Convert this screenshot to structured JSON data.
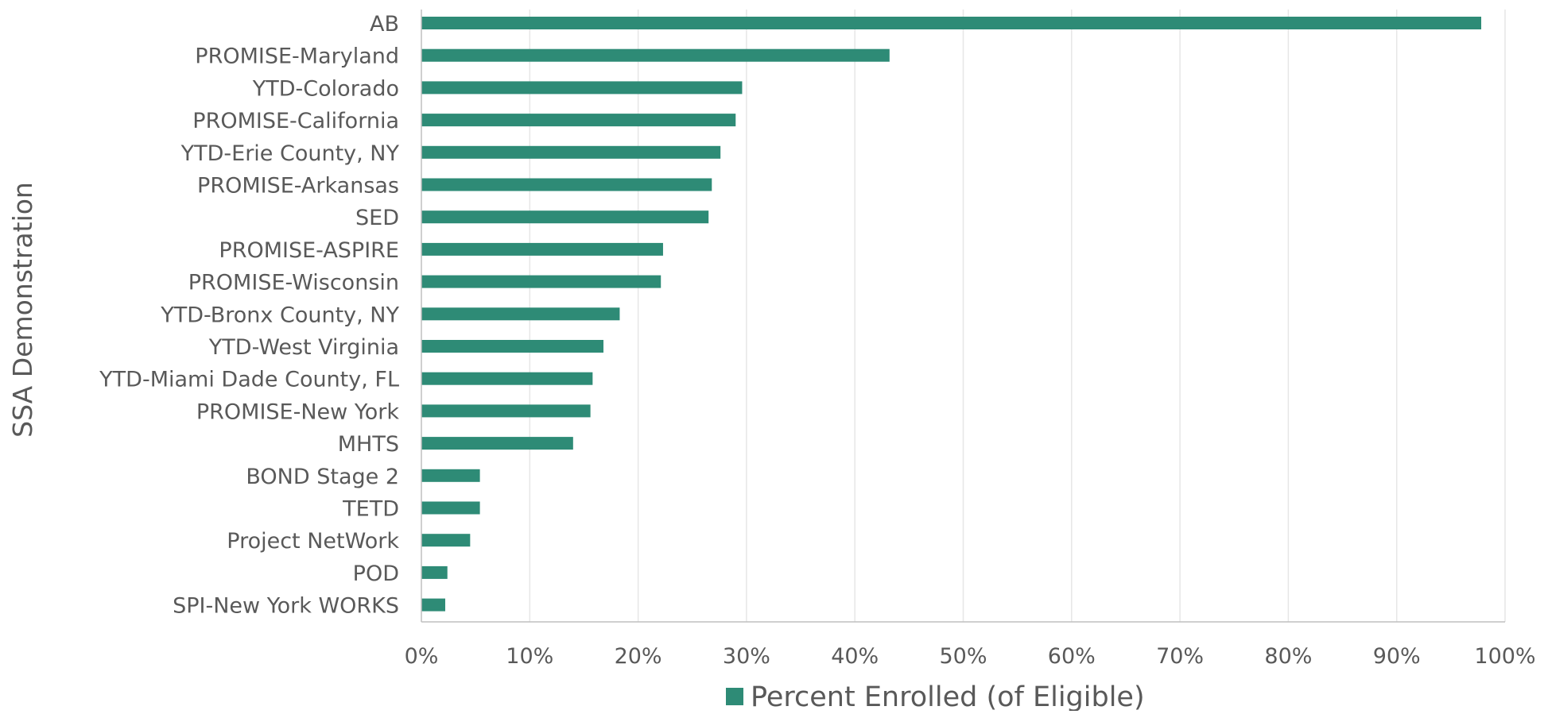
{
  "chart_data": {
    "type": "bar",
    "orientation": "horizontal",
    "title": "",
    "xlabel": "",
    "ylabel": "SSA Demonstration",
    "xlim": [
      0,
      100
    ],
    "x_ticks": [
      0,
      10,
      20,
      30,
      40,
      50,
      60,
      70,
      80,
      90,
      100
    ],
    "x_tick_format": "percent",
    "grid": "vertical",
    "legend_position": "bottom",
    "colors": {
      "bar": "#2e8b76",
      "text": "#595959"
    },
    "series": [
      {
        "name": "Percent Enrolled (of Eligible)",
        "values": [
          97.8,
          43.2,
          29.6,
          29.0,
          27.6,
          26.8,
          26.5,
          22.3,
          22.1,
          18.3,
          16.8,
          15.8,
          15.6,
          14.0,
          5.4,
          5.4,
          4.5,
          2.4,
          2.2
        ]
      }
    ],
    "categories": [
      "AB",
      "PROMISE-Maryland",
      "YTD-Colorado",
      "PROMISE-California",
      "YTD-Erie County, NY",
      "PROMISE-Arkansas",
      "SED",
      "PROMISE-ASPIRE",
      "PROMISE-Wisconsin",
      "YTD-Bronx County, NY",
      "YTD-West Virginia",
      "YTD-Miami Dade County, FL",
      "PROMISE-New York",
      "MHTS",
      "BOND Stage 2",
      "TETD",
      "Project NetWork",
      "POD",
      "SPI-New York WORKS"
    ]
  }
}
